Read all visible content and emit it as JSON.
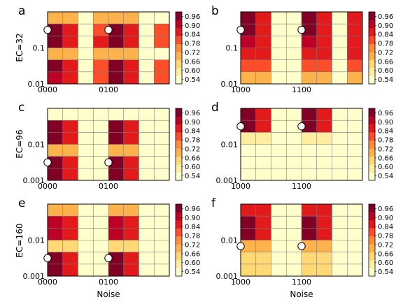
{
  "figure": {
    "row_labels": [
      "EC=32",
      "EC=96",
      "EC=160"
    ],
    "xlabel": "Noise"
  },
  "colorbar": {
    "ticks": [
      "0.96",
      "0.90",
      "0.84",
      "0.78",
      "0.72",
      "0.66",
      "0.60",
      "0.54"
    ],
    "colors": [
      "#ffffcc",
      "#ffeda0",
      "#fed976",
      "#feb24c",
      "#fd8d3c",
      "#fc4e2a",
      "#e31a1c",
      "#bd0026",
      "#800026"
    ]
  },
  "chart_data": [
    {
      "type": "heatmap",
      "letter": "a",
      "x_ticks": [
        "0000",
        "0100"
      ],
      "y_ticks": [
        "0.1",
        "0.01"
      ],
      "scale": "log-y",
      "values": [
        [
          0.72,
          0.72,
          0.54,
          0.72,
          0.72,
          0.72,
          0.54,
          0.54
        ],
        [
          0.94,
          0.86,
          0.54,
          0.82,
          0.95,
          0.86,
          0.54,
          0.8
        ],
        [
          0.96,
          0.88,
          0.54,
          0.86,
          0.96,
          0.88,
          0.54,
          0.78
        ],
        [
          0.72,
          0.72,
          0.54,
          0.72,
          0.72,
          0.72,
          0.54,
          0.54
        ],
        [
          0.96,
          0.88,
          0.54,
          0.82,
          0.96,
          0.88,
          0.54,
          0.8
        ],
        [
          0.92,
          0.86,
          0.54,
          0.8,
          0.94,
          0.86,
          0.54,
          0.78
        ]
      ],
      "markers": [
        [
          0,
          1
        ],
        [
          4,
          1
        ]
      ]
    },
    {
      "type": "heatmap",
      "letter": "b",
      "x_ticks": [
        "1000",
        "1100"
      ],
      "y_ticks": [
        "0.1",
        "0.01"
      ],
      "scale": "log-y",
      "values": [
        [
          0.94,
          0.86,
          0.54,
          0.54,
          0.94,
          0.86,
          0.54,
          0.86
        ],
        [
          0.94,
          0.86,
          0.54,
          0.54,
          0.94,
          0.86,
          0.54,
          0.86
        ],
        [
          0.92,
          0.84,
          0.54,
          0.54,
          0.92,
          0.84,
          0.54,
          0.84
        ],
        [
          0.88,
          0.84,
          0.54,
          0.54,
          0.88,
          0.84,
          0.54,
          0.84
        ],
        [
          0.8,
          0.8,
          0.54,
          0.54,
          0.8,
          0.8,
          0.54,
          0.8
        ],
        [
          0.72,
          0.72,
          0.54,
          0.54,
          0.72,
          0.72,
          0.54,
          0.72
        ]
      ],
      "markers": [
        [
          0,
          1
        ],
        [
          4,
          1
        ]
      ]
    },
    {
      "type": "heatmap",
      "letter": "c",
      "x_ticks": [
        "0000",
        "0100"
      ],
      "y_ticks": [
        "0.01",
        "0.001"
      ],
      "scale": "log-y",
      "values": [
        [
          0.54,
          0.54,
          0.54,
          0.54,
          0.54,
          0.54,
          0.54,
          0.54
        ],
        [
          0.94,
          0.86,
          0.54,
          0.54,
          0.94,
          0.86,
          0.54,
          0.54
        ],
        [
          0.94,
          0.86,
          0.54,
          0.54,
          0.94,
          0.86,
          0.54,
          0.54
        ],
        [
          0.72,
          0.72,
          0.54,
          0.54,
          0.72,
          0.72,
          0.54,
          0.54
        ],
        [
          0.94,
          0.86,
          0.54,
          0.54,
          0.94,
          0.86,
          0.54,
          0.54
        ],
        [
          0.94,
          0.86,
          0.54,
          0.54,
          0.94,
          0.86,
          0.54,
          0.54
        ]
      ],
      "markers": [
        [
          0,
          4
        ],
        [
          4,
          4
        ]
      ]
    },
    {
      "type": "heatmap",
      "letter": "d",
      "x_ticks": [
        "1000",
        "1100"
      ],
      "y_ticks": [
        "0.01",
        "0.001"
      ],
      "scale": "log-y",
      "values": [
        [
          0.94,
          0.86,
          0.54,
          0.54,
          0.94,
          0.86,
          0.54,
          0.54
        ],
        [
          0.94,
          0.86,
          0.54,
          0.54,
          0.94,
          0.86,
          0.54,
          0.54
        ],
        [
          0.6,
          0.6,
          0.54,
          0.54,
          0.6,
          0.6,
          0.54,
          0.54
        ],
        [
          0.54,
          0.54,
          0.54,
          0.54,
          0.54,
          0.54,
          0.54,
          0.54
        ],
        [
          0.54,
          0.54,
          0.54,
          0.54,
          0.54,
          0.54,
          0.54,
          0.54
        ],
        [
          0.54,
          0.54,
          0.54,
          0.54,
          0.54,
          0.54,
          0.54,
          0.54
        ]
      ],
      "markers": [
        [
          0,
          1
        ],
        [
          4,
          1
        ]
      ]
    },
    {
      "type": "heatmap",
      "letter": "e",
      "x_ticks": [
        "0000",
        "0100"
      ],
      "y_ticks": [
        "0.01",
        "0.001"
      ],
      "scale": "log-y",
      "values": [
        [
          0.72,
          0.72,
          0.54,
          0.54,
          0.72,
          0.72,
          0.54,
          0.54
        ],
        [
          0.92,
          0.86,
          0.54,
          0.54,
          0.92,
          0.86,
          0.54,
          0.54
        ],
        [
          0.92,
          0.86,
          0.54,
          0.54,
          0.92,
          0.86,
          0.54,
          0.54
        ],
        [
          0.66,
          0.66,
          0.54,
          0.54,
          0.66,
          0.66,
          0.54,
          0.54
        ],
        [
          0.94,
          0.86,
          0.54,
          0.54,
          0.94,
          0.86,
          0.54,
          0.54
        ],
        [
          0.94,
          0.86,
          0.54,
          0.54,
          0.94,
          0.86,
          0.54,
          0.54
        ]
      ],
      "markers": [
        [
          0,
          4
        ],
        [
          4,
          4
        ]
      ]
    },
    {
      "type": "heatmap",
      "letter": "f",
      "x_ticks": [
        "1000",
        "1100"
      ],
      "y_ticks": [
        "0.01",
        "0.001"
      ],
      "scale": "log-y",
      "values": [
        [
          0.88,
          0.84,
          0.54,
          0.54,
          0.88,
          0.84,
          0.54,
          0.54
        ],
        [
          0.94,
          0.86,
          0.54,
          0.54,
          0.94,
          0.86,
          0.54,
          0.54
        ],
        [
          0.94,
          0.86,
          0.54,
          0.54,
          0.94,
          0.86,
          0.54,
          0.54
        ],
        [
          0.72,
          0.72,
          0.54,
          0.54,
          0.72,
          0.72,
          0.54,
          0.54
        ],
        [
          0.66,
          0.66,
          0.54,
          0.54,
          0.66,
          0.66,
          0.54,
          0.54
        ],
        [
          0.66,
          0.66,
          0.54,
          0.54,
          0.66,
          0.66,
          0.54,
          0.54
        ]
      ],
      "markers": [
        [
          0,
          3
        ],
        [
          4,
          3
        ]
      ]
    }
  ]
}
